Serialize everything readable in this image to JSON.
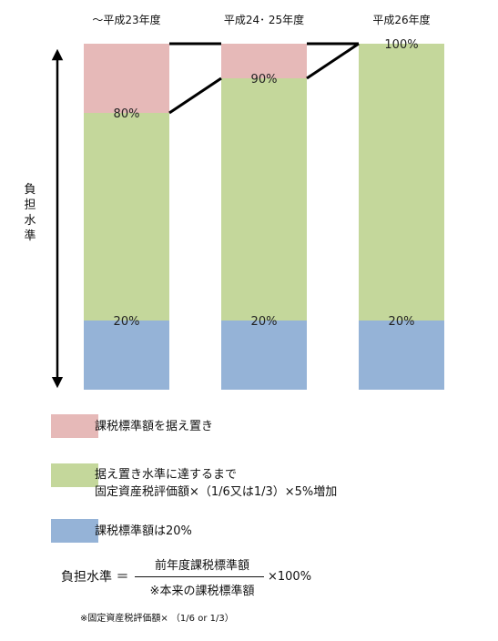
{
  "chart_data": {
    "type": "bar",
    "stacked": true,
    "categories": [
      "～平成23年度",
      "平成24･ 25年度",
      "平成26年度"
    ],
    "ylim": [
      0,
      100
    ],
    "ylabel": "負担水準",
    "series": [
      {
        "key": "base",
        "color": "#95b3d7",
        "values": [
          20,
          20,
          20
        ]
      },
      {
        "key": "increase",
        "color": "#c4d79b",
        "values": [
          60,
          70,
          80
        ]
      },
      {
        "key": "fixed",
        "color": "#e6b9b8",
        "values": [
          20,
          10,
          0
        ]
      }
    ],
    "segment_labels": [
      {
        "bar": 0,
        "level": 20,
        "text": "20%"
      },
      {
        "bar": 1,
        "level": 20,
        "text": "20%"
      },
      {
        "bar": 2,
        "level": 20,
        "text": "20%"
      },
      {
        "bar": 0,
        "level": 80,
        "text": "80%"
      },
      {
        "bar": 1,
        "level": 90,
        "text": "90%"
      },
      {
        "bar": 2,
        "level": 100,
        "text": "100%"
      }
    ]
  },
  "legend": [
    {
      "color": "#e6b9b8",
      "lines": [
        "課税標準額を据え置き"
      ]
    },
    {
      "color": "#c4d79b",
      "lines": [
        "据え置き水準に達するまで",
        "固定資産税評価額×（1/6又は1/3）×5%増加"
      ]
    },
    {
      "color": "#95b3d7",
      "lines": [
        "課税標準額は20%"
      ]
    }
  ],
  "formula": {
    "lhs": "負担水準 ＝",
    "numerator": "前年度課税標準額",
    "denominator": "※本来の課税標準額",
    "multiplier": "×100%"
  },
  "footnote": "※固定資産税評価額× （1/6 or 1/3）"
}
